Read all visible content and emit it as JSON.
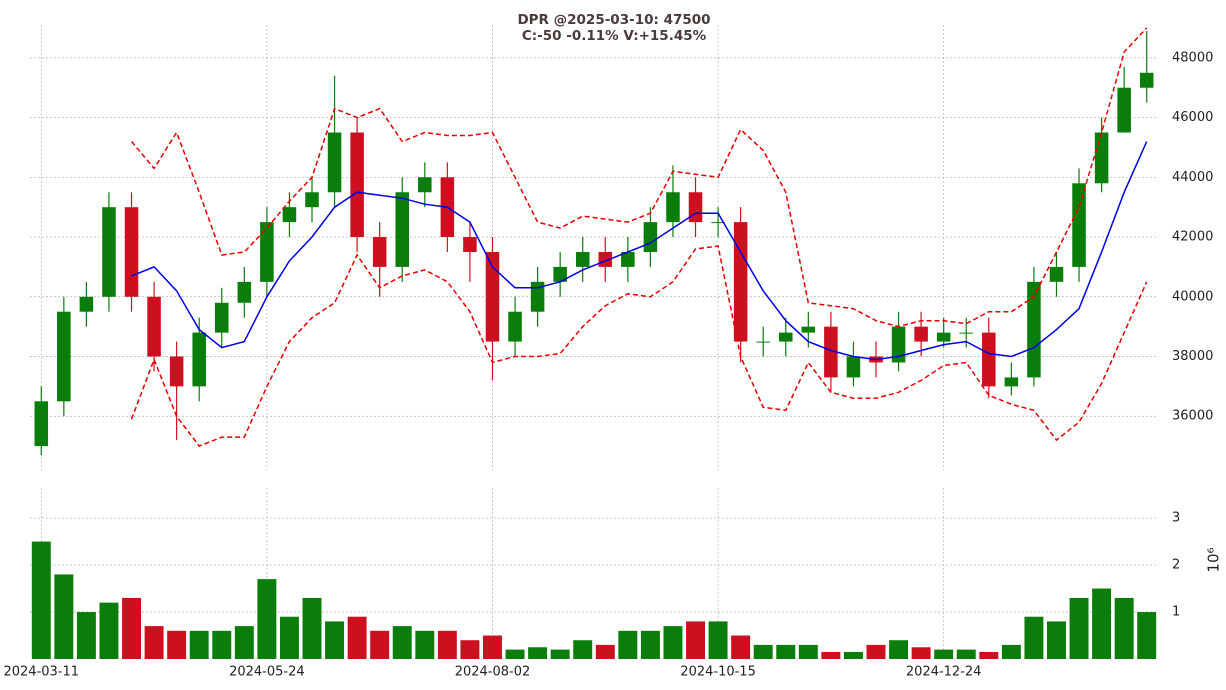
{
  "chart_data": {
    "type": "candlestick",
    "title": [
      "DPR @2025-03-10: 47500",
      "C:-50 -0.11% V:+15.45%"
    ],
    "categories": [
      "2024-03-11",
      null,
      null,
      null,
      null,
      null,
      null,
      null,
      null,
      null,
      "2024-05-24",
      null,
      null,
      null,
      null,
      null,
      null,
      null,
      null,
      null,
      "2024-08-02",
      null,
      null,
      null,
      null,
      null,
      null,
      null,
      null,
      null,
      "2024-10-15",
      null,
      null,
      null,
      null,
      null,
      null,
      null,
      null,
      null,
      "2024-12-24",
      null,
      null,
      null,
      null,
      null,
      null,
      null,
      null,
      null
    ],
    "open": [
      35000,
      36500,
      39500,
      40000,
      43000,
      40000,
      38000,
      37000,
      38800,
      39800,
      40500,
      42500,
      43000,
      43500,
      45500,
      42000,
      41000,
      43500,
      44000,
      42000,
      41500,
      38500,
      39500,
      40500,
      41000,
      41500,
      41000,
      41500,
      42500,
      43500,
      42500,
      42500,
      38500,
      38500,
      38800,
      39000,
      37300,
      38000,
      37800,
      39000,
      38500,
      38800,
      38800,
      37000,
      37300,
      40500,
      41000,
      43800,
      45500,
      47000
    ],
    "high": [
      37000,
      40000,
      40500,
      43500,
      43500,
      40500,
      38500,
      39300,
      40300,
      41000,
      43000,
      43500,
      44000,
      47400,
      46000,
      42500,
      44000,
      44500,
      44500,
      42500,
      42000,
      40000,
      41000,
      41500,
      42000,
      42000,
      42000,
      43000,
      44400,
      44000,
      43000,
      43000,
      39000,
      39300,
      39500,
      39500,
      38500,
      38500,
      39500,
      39500,
      39300,
      39300,
      39300,
      37800,
      41000,
      41500,
      44300,
      46000,
      47700,
      48900
    ],
    "low": [
      34700,
      36000,
      39000,
      39500,
      39500,
      37500,
      35200,
      36500,
      38300,
      39300,
      40000,
      42000,
      42500,
      43000,
      41500,
      40000,
      40500,
      43000,
      41500,
      40500,
      37200,
      38000,
      39000,
      40000,
      40500,
      40500,
      40500,
      41000,
      42000,
      42000,
      42000,
      37800,
      38000,
      38000,
      38300,
      36800,
      37000,
      37300,
      37500,
      38000,
      38300,
      38300,
      36600,
      36700,
      37000,
      40000,
      40500,
      43500,
      45500,
      46500
    ],
    "close": [
      36500,
      39500,
      40000,
      43000,
      40000,
      38000,
      37000,
      38800,
      39800,
      40500,
      42500,
      43000,
      43500,
      45500,
      42000,
      41000,
      43500,
      44000,
      42000,
      41500,
      38500,
      39500,
      40500,
      41000,
      41500,
      41000,
      41500,
      42500,
      43500,
      42500,
      42500,
      38500,
      38500,
      38800,
      39000,
      37300,
      38000,
      37800,
      39000,
      38500,
      38800,
      38800,
      37000,
      37300,
      40500,
      41000,
      43800,
      45500,
      47000,
      47500
    ],
    "up_color": "#0b7d0b",
    "down_color": "#cc1020",
    "series": [
      {
        "color": "#0000e6",
        "dashed": false,
        "values": [
          null,
          null,
          null,
          null,
          40700,
          41000,
          40200,
          38900,
          38300,
          38500,
          40000,
          41200,
          42000,
          43000,
          43500,
          43400,
          43300,
          43100,
          43000,
          42500,
          41000,
          40300,
          40300,
          40500,
          40900,
          41200,
          41500,
          41800,
          42300,
          42800,
          42800,
          41500,
          40200,
          39200,
          38500,
          38200,
          38000,
          37900,
          38000,
          38200,
          38400,
          38500,
          38100,
          38000,
          38300,
          38900,
          39600,
          41500,
          43500,
          45200
        ]
      },
      {
        "color": "#e60000",
        "dashed": true,
        "values": [
          null,
          null,
          null,
          null,
          45200,
          44300,
          45500,
          43500,
          41400,
          41500,
          42300,
          43200,
          44000,
          46300,
          46000,
          46300,
          45200,
          45500,
          45400,
          45400,
          45500,
          44000,
          42500,
          42300,
          42700,
          42600,
          42500,
          42800,
          44200,
          44100,
          44000,
          45600,
          44900,
          43500,
          39800,
          39700,
          39600,
          39200,
          39000,
          39200,
          39200,
          39100,
          39500,
          39500,
          40000,
          41500,
          43000,
          45500,
          48200,
          49000
        ]
      },
      {
        "color": "#e60000",
        "dashed": true,
        "values": [
          null,
          null,
          null,
          null,
          35900,
          37900,
          36000,
          35000,
          35300,
          35300,
          37000,
          38500,
          39300,
          39800,
          41400,
          40300,
          40700,
          40900,
          40500,
          39500,
          37800,
          38000,
          38000,
          38100,
          39000,
          39700,
          40100,
          40000,
          40500,
          41600,
          41700,
          38000,
          36300,
          36200,
          37800,
          36800,
          36600,
          36600,
          36800,
          37200,
          37700,
          37800,
          36700,
          36400,
          36200,
          35200,
          35800,
          37100,
          38800,
          40500
        ]
      }
    ],
    "ylim": [
      34200,
      49100
    ],
    "yticks": [
      36000,
      38000,
      40000,
      42000,
      44000,
      46000,
      48000
    ],
    "grid": true,
    "volume": {
      "label": "10⁶",
      "values": [
        2.5,
        1.8,
        1.0,
        1.2,
        1.3,
        0.7,
        0.6,
        0.6,
        0.6,
        0.7,
        1.7,
        0.9,
        1.3,
        0.8,
        0.9,
        0.6,
        0.7,
        0.6,
        0.6,
        0.4,
        0.5,
        0.2,
        0.25,
        0.2,
        0.4,
        0.3,
        0.6,
        0.6,
        0.7,
        0.8,
        0.8,
        0.5,
        0.3,
        0.3,
        0.3,
        0.15,
        0.15,
        0.3,
        0.4,
        0.25,
        0.2,
        0.2,
        0.15,
        0.3,
        0.9,
        0.8,
        1.3,
        1.5,
        1.3,
        1.0
      ],
      "ylim": [
        0,
        3.64
      ],
      "yticks": [
        1,
        2,
        3
      ]
    }
  }
}
